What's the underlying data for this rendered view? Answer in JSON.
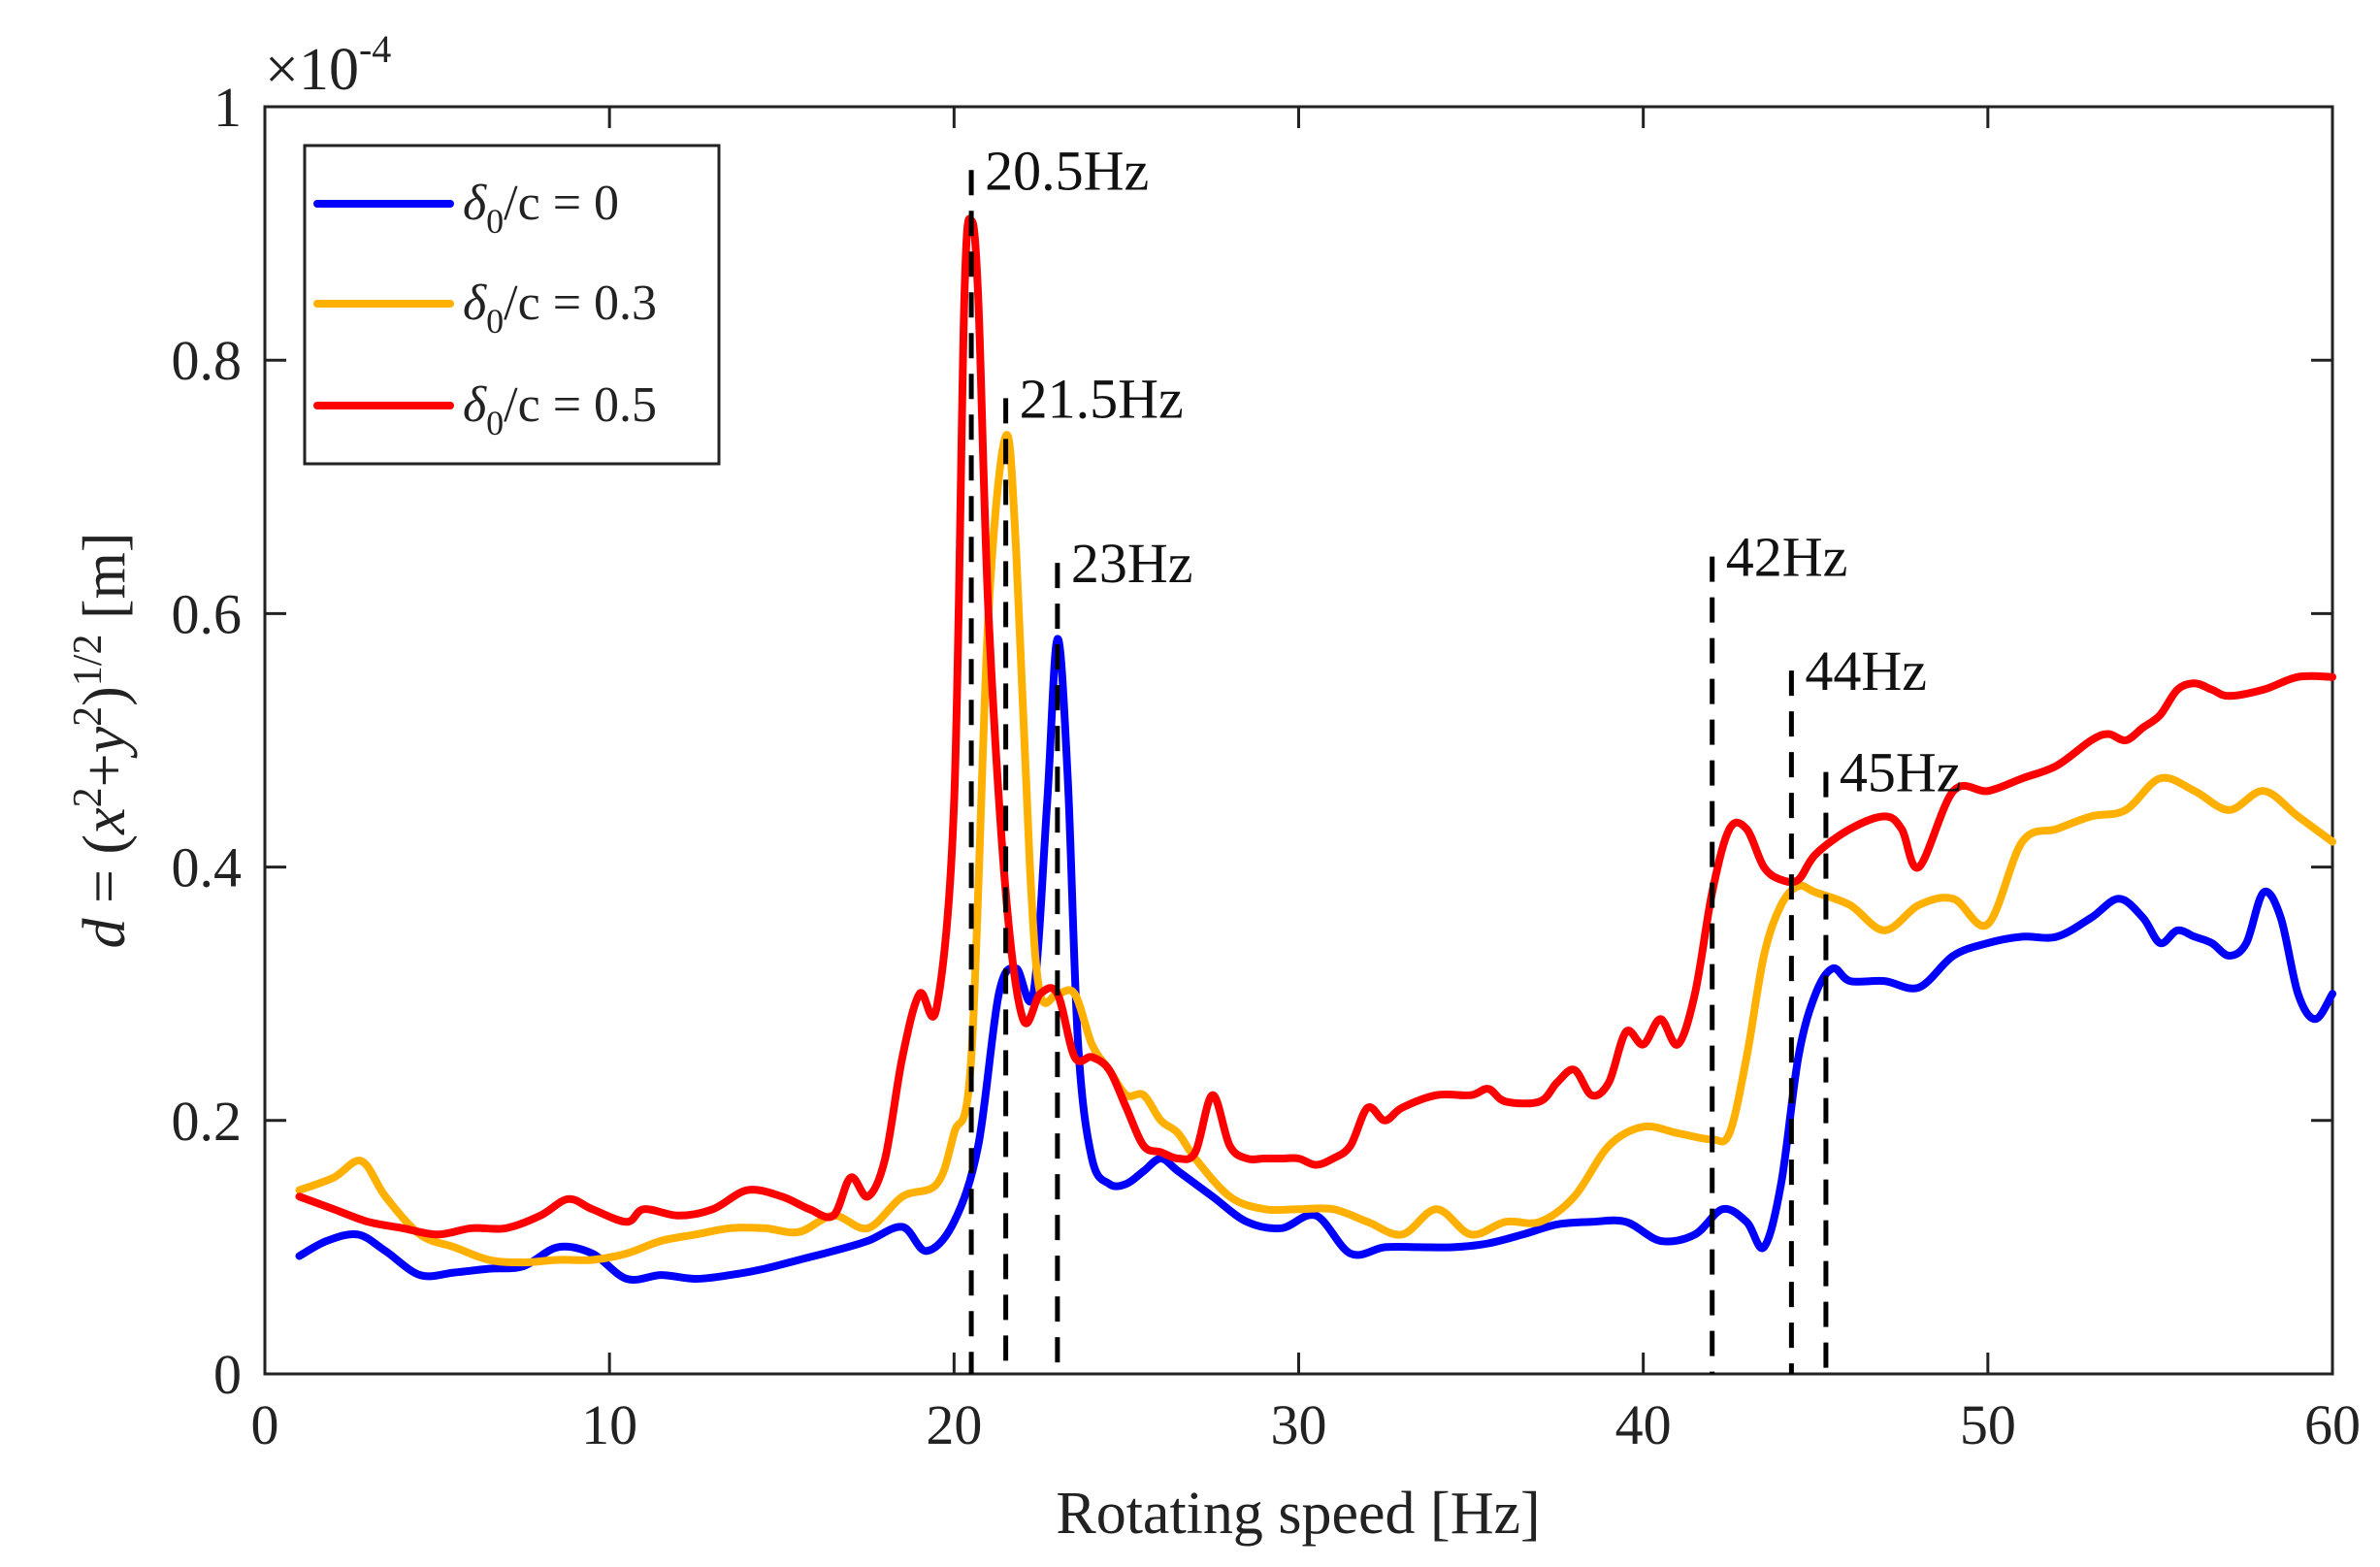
{
  "chart_data": {
    "type": "line",
    "title": "",
    "xlabel": "Rotating speed [Hz]",
    "ylabel": "d = (x² + y²)^(1/2) [m]",
    "ylabel_parts": {
      "var": "d",
      "eq": " = (",
      "x": "x",
      "sup2a": "2",
      "plus": "+",
      "y": "y",
      "sup2b": "2",
      "close": ")",
      "exp": "1/2",
      "unit": " [m]"
    },
    "y_multiplier": {
      "base": "×10",
      "exp": "-4"
    },
    "xlim": [
      0,
      60
    ],
    "ylim": [
      0,
      1
    ],
    "xticks": [
      0,
      10,
      20,
      30,
      40,
      50,
      60
    ],
    "xtick_labels": [
      "0",
      "10",
      "20",
      "30",
      "40",
      "50",
      "60"
    ],
    "yticks": [
      0,
      0.2,
      0.4,
      0.6,
      0.8,
      1
    ],
    "ytick_labels": [
      "0",
      "0.2",
      "0.4",
      "0.6",
      "0.8",
      "1"
    ],
    "grid": false,
    "legend_position": "top-left",
    "series": [
      {
        "name": "δ0/c = 0",
        "legend": {
          "delta": "δ",
          "sub": "0",
          "rest": "/c = 0"
        },
        "color": "#0000ff",
        "x": [
          1,
          1.8,
          2.7,
          3.5,
          4.5,
          5.5,
          6.5,
          7.5,
          8.5,
          9.5,
          10.5,
          11.5,
          12.5,
          13.5,
          14.5,
          15.5,
          16.5,
          17.5,
          18.5,
          19.2,
          20,
          20.7,
          21.3,
          21.8,
          22.3,
          22.7,
          23,
          23.3,
          23.6,
          24,
          24.5,
          25,
          25.5,
          26,
          26.5,
          27.5,
          28.5,
          29.5,
          30.5,
          31.5,
          32.5,
          33.5,
          34.5,
          35.5,
          36.5,
          37.5,
          38.5,
          39.5,
          40.5,
          41.5,
          42.3,
          43,
          43.5,
          44,
          44.5,
          45,
          45.5,
          46,
          47,
          48,
          49,
          50,
          51,
          52,
          53,
          53.8,
          54.5,
          55,
          55.5,
          56,
          56.5,
          57,
          57.5,
          58,
          58.5,
          59,
          59.5,
          60
        ],
        "y": [
          0.093,
          0.105,
          0.11,
          0.097,
          0.078,
          0.08,
          0.083,
          0.085,
          0.1,
          0.095,
          0.075,
          0.078,
          0.075,
          0.078,
          0.083,
          0.09,
          0.097,
          0.105,
          0.116,
          0.097,
          0.12,
          0.18,
          0.3,
          0.32,
          0.3,
          0.45,
          0.58,
          0.47,
          0.26,
          0.17,
          0.15,
          0.15,
          0.16,
          0.17,
          0.16,
          0.14,
          0.12,
          0.115,
          0.125,
          0.095,
          0.1,
          0.1,
          0.1,
          0.103,
          0.11,
          0.118,
          0.12,
          0.12,
          0.105,
          0.11,
          0.13,
          0.12,
          0.1,
          0.15,
          0.25,
          0.3,
          0.32,
          0.31,
          0.31,
          0.305,
          0.33,
          0.34,
          0.345,
          0.345,
          0.36,
          0.375,
          0.36,
          0.34,
          0.35,
          0.345,
          0.34,
          0.33,
          0.34,
          0.38,
          0.36,
          0.3,
          0.28,
          0.3
        ]
      },
      {
        "name": "δ0/c = 0.3",
        "legend": {
          "delta": "δ",
          "sub": "0",
          "rest": "/c = 0.3"
        },
        "color": "#ffb000",
        "x": [
          1,
          2,
          2.8,
          3.5,
          4.5,
          5.5,
          6.5,
          7.5,
          8.5,
          9.5,
          10.5,
          11.5,
          12.5,
          13.5,
          14.5,
          15.5,
          16.5,
          17.5,
          18.5,
          19.5,
          20,
          20.5,
          21,
          21.5,
          21.8,
          22.2,
          22.5,
          23,
          23.5,
          24,
          24.5,
          25,
          25.5,
          26,
          26.5,
          27,
          28,
          29,
          30,
          31,
          32,
          33,
          34,
          35,
          36,
          37,
          38,
          39,
          40,
          41,
          42,
          42.5,
          43,
          43.5,
          44,
          44.5,
          45,
          46,
          47,
          48,
          49,
          50,
          51,
          52,
          53,
          54,
          55,
          56,
          57,
          58,
          59,
          60
        ],
        "y": [
          0.145,
          0.155,
          0.168,
          0.14,
          0.11,
          0.1,
          0.09,
          0.088,
          0.09,
          0.09,
          0.095,
          0.105,
          0.11,
          0.115,
          0.115,
          0.112,
          0.125,
          0.115,
          0.14,
          0.15,
          0.19,
          0.25,
          0.6,
          0.74,
          0.65,
          0.4,
          0.3,
          0.3,
          0.3,
          0.26,
          0.24,
          0.22,
          0.22,
          0.2,
          0.19,
          0.17,
          0.14,
          0.13,
          0.13,
          0.13,
          0.12,
          0.11,
          0.13,
          0.11,
          0.12,
          0.12,
          0.14,
          0.18,
          0.195,
          0.19,
          0.185,
          0.19,
          0.25,
          0.33,
          0.37,
          0.385,
          0.38,
          0.37,
          0.35,
          0.37,
          0.375,
          0.355,
          0.42,
          0.43,
          0.44,
          0.445,
          0.47,
          0.46,
          0.445,
          0.46,
          0.44,
          0.42
        ]
      },
      {
        "name": "δ0/c = 0.5",
        "legend": {
          "delta": "δ",
          "sub": "0",
          "rest": "/c = 0.5"
        },
        "color": "#ff0000",
        "x": [
          1,
          2,
          3,
          4,
          5,
          6,
          7,
          8,
          8.8,
          9.5,
          10.5,
          11,
          12,
          13,
          14,
          15,
          15.8,
          16.5,
          17,
          17.5,
          18,
          18.5,
          19,
          19.5,
          20,
          20.3,
          20.5,
          20.7,
          21,
          21.5,
          22,
          22.5,
          23,
          23.5,
          24,
          24.5,
          25,
          25.5,
          26,
          26.5,
          27,
          27.5,
          28,
          28.5,
          29,
          29.5,
          30,
          30.5,
          31,
          31.5,
          32,
          32.5,
          33,
          34,
          35,
          35.5,
          36,
          37,
          37.5,
          38,
          38.5,
          39,
          39.5,
          40,
          40.5,
          41,
          41.5,
          42,
          42.5,
          43,
          43.5,
          44,
          44.5,
          45,
          46,
          47,
          47.5,
          48,
          49,
          50,
          51,
          52,
          53,
          53.5,
          54,
          54.5,
          55,
          55.5,
          56,
          56.5,
          57,
          58,
          59,
          60
        ],
        "y": [
          0.14,
          0.13,
          0.12,
          0.115,
          0.11,
          0.115,
          0.115,
          0.125,
          0.138,
          0.13,
          0.12,
          0.13,
          0.125,
          0.13,
          0.145,
          0.14,
          0.13,
          0.125,
          0.155,
          0.14,
          0.17,
          0.25,
          0.3,
          0.29,
          0.45,
          0.85,
          0.91,
          0.85,
          0.6,
          0.38,
          0.28,
          0.3,
          0.3,
          0.25,
          0.25,
          0.24,
          0.21,
          0.18,
          0.175,
          0.17,
          0.175,
          0.22,
          0.18,
          0.17,
          0.17,
          0.17,
          0.17,
          0.165,
          0.17,
          0.18,
          0.21,
          0.2,
          0.21,
          0.22,
          0.22,
          0.225,
          0.215,
          0.215,
          0.23,
          0.24,
          0.22,
          0.23,
          0.27,
          0.26,
          0.28,
          0.26,
          0.3,
          0.38,
          0.43,
          0.43,
          0.4,
          0.39,
          0.39,
          0.41,
          0.43,
          0.44,
          0.43,
          0.4,
          0.46,
          0.46,
          0.47,
          0.48,
          0.5,
          0.505,
          0.5,
          0.51,
          0.52,
          0.54,
          0.545,
          0.54,
          0.535,
          0.54,
          0.55,
          0.55
        ]
      }
    ],
    "annotations": [
      {
        "label": "20.5Hz",
        "x": 20.5,
        "y_top": 0.95,
        "y_bottom": 0
      },
      {
        "label": "21.5Hz",
        "x": 21.5,
        "y_top": 0.77,
        "y_bottom": 0
      },
      {
        "label": "23Hz",
        "x": 23,
        "y_top": 0.64,
        "y_bottom": 0
      },
      {
        "label": "42Hz",
        "x": 42,
        "y_top": 0.645,
        "y_bottom": 0
      },
      {
        "label": "44Hz",
        "x": 44.3,
        "y_top": 0.555,
        "y_bottom": 0
      },
      {
        "label": "45Hz",
        "x": 45.3,
        "y_top": 0.475,
        "y_bottom": 0
      }
    ]
  }
}
